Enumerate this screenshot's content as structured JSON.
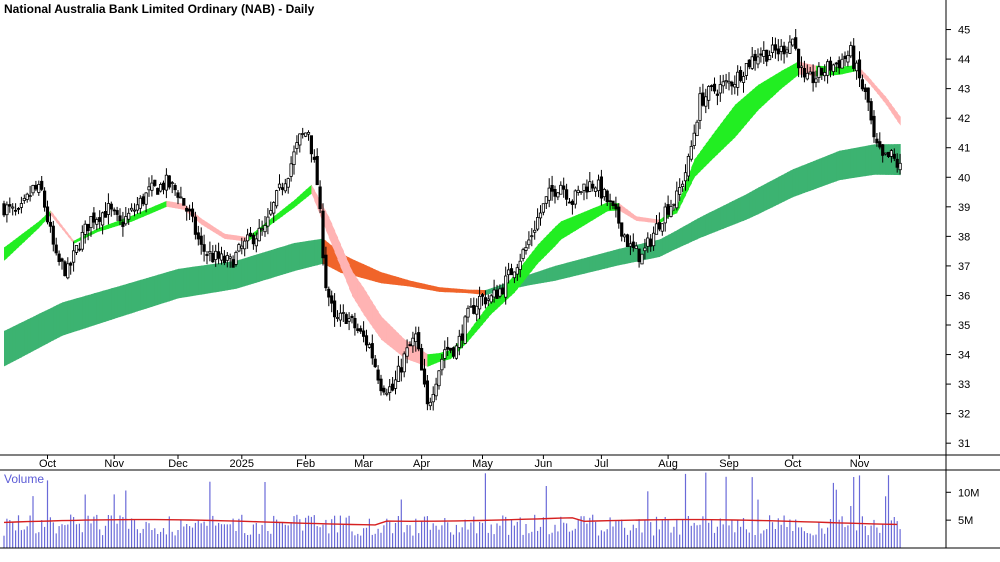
{
  "chart_data": {
    "type": "candlestick",
    "title": "National Australia Bank Limited Ordinary (NAB) - Daily",
    "price_axis": {
      "ylim": [
        30.6,
        46
      ],
      "ticks": [
        31,
        32,
        33,
        34,
        35,
        36,
        37,
        38,
        39,
        40,
        41,
        42,
        43,
        44,
        45
      ]
    },
    "months": [
      {
        "label": "Oct",
        "index": 15
      },
      {
        "label": "Nov",
        "index": 38
      },
      {
        "label": "Dec",
        "index": 60
      },
      {
        "label": "2025",
        "index": 82
      },
      {
        "label": "Feb",
        "index": 104
      },
      {
        "label": "Mar",
        "index": 124
      },
      {
        "label": "Apr",
        "index": 144
      },
      {
        "label": "May",
        "index": 165
      },
      {
        "label": "Jun",
        "index": 186
      },
      {
        "label": "Jul",
        "index": 206
      },
      {
        "label": "Aug",
        "index": 229
      },
      {
        "label": "Sep",
        "index": 250
      },
      {
        "label": "Oct",
        "index": 272
      },
      {
        "label": "Nov",
        "index": 295
      }
    ],
    "close_keyframes": [
      [
        0,
        39.0
      ],
      [
        5,
        38.7
      ],
      [
        10,
        39.6
      ],
      [
        13,
        39.5
      ],
      [
        18,
        37.2
      ],
      [
        22,
        36.8
      ],
      [
        26,
        37.8
      ],
      [
        30,
        38.6
      ],
      [
        36,
        38.9
      ],
      [
        40,
        38.4
      ],
      [
        44,
        38.8
      ],
      [
        50,
        39.5
      ],
      [
        56,
        39.8
      ],
      [
        60,
        39.5
      ],
      [
        64,
        38.7
      ],
      [
        68,
        37.6
      ],
      [
        72,
        37.3
      ],
      [
        78,
        37.1
      ],
      [
        82,
        37.6
      ],
      [
        86,
        38.0
      ],
      [
        90,
        38.2
      ],
      [
        94,
        39.3
      ],
      [
        98,
        40.2
      ],
      [
        102,
        41.3
      ],
      [
        105,
        41.6
      ],
      [
        108,
        39.8
      ],
      [
        111,
        36.4
      ],
      [
        114,
        35.1
      ],
      [
        118,
        35.3
      ],
      [
        122,
        34.8
      ],
      [
        126,
        34.3
      ],
      [
        130,
        33.0
      ],
      [
        134,
        32.8
      ],
      [
        138,
        33.9
      ],
      [
        142,
        34.6
      ],
      [
        146,
        32.2
      ],
      [
        148,
        32.9
      ],
      [
        152,
        34.2
      ],
      [
        156,
        34.2
      ],
      [
        160,
        35.3
      ],
      [
        164,
        35.9
      ],
      [
        168,
        35.9
      ],
      [
        172,
        36.3
      ],
      [
        176,
        37.0
      ],
      [
        180,
        37.6
      ],
      [
        184,
        38.6
      ],
      [
        188,
        39.4
      ],
      [
        192,
        39.8
      ],
      [
        196,
        39.2
      ],
      [
        200,
        39.7
      ],
      [
        204,
        39.8
      ],
      [
        208,
        39.2
      ],
      [
        212,
        38.5
      ],
      [
        216,
        37.6
      ],
      [
        220,
        37.3
      ],
      [
        224,
        38.1
      ],
      [
        228,
        38.9
      ],
      [
        232,
        39.3
      ],
      [
        236,
        40.5
      ],
      [
        240,
        42.6
      ],
      [
        244,
        42.9
      ],
      [
        248,
        43.1
      ],
      [
        252,
        43.3
      ],
      [
        256,
        43.8
      ],
      [
        260,
        44.2
      ],
      [
        264,
        44.2
      ],
      [
        268,
        44.3
      ],
      [
        272,
        44.7
      ],
      [
        276,
        43.2
      ],
      [
        280,
        43.4
      ],
      [
        284,
        43.7
      ],
      [
        288,
        43.9
      ],
      [
        292,
        44.2
      ],
      [
        295,
        43.3
      ],
      [
        298,
        42.5
      ],
      [
        300,
        41.2
      ],
      [
        303,
        40.6
      ],
      [
        306,
        40.7
      ],
      [
        309,
        40.3
      ],
      [
        310,
        40.2
      ]
    ],
    "ema_fast_keyframes": [
      [
        0,
        37.4
      ],
      [
        12,
        38.4
      ],
      [
        16,
        38.8
      ],
      [
        24,
        37.8
      ],
      [
        32,
        38.2
      ],
      [
        44,
        38.6
      ],
      [
        56,
        39.1
      ],
      [
        62,
        39.0
      ],
      [
        68,
        38.5
      ],
      [
        76,
        38.0
      ],
      [
        84,
        37.9
      ],
      [
        92,
        38.5
      ],
      [
        100,
        39.1
      ],
      [
        106,
        39.6
      ],
      [
        112,
        38.3
      ],
      [
        120,
        36.4
      ],
      [
        130,
        34.9
      ],
      [
        138,
        34.2
      ],
      [
        146,
        33.8
      ],
      [
        154,
        34.0
      ],
      [
        160,
        34.6
      ],
      [
        168,
        35.6
      ],
      [
        176,
        36.4
      ],
      [
        184,
        37.4
      ],
      [
        192,
        38.2
      ],
      [
        200,
        38.6
      ],
      [
        208,
        39.0
      ],
      [
        212,
        39.0
      ],
      [
        218,
        38.6
      ],
      [
        226,
        38.5
      ],
      [
        232,
        38.9
      ],
      [
        238,
        40.3
      ],
      [
        244,
        41.0
      ],
      [
        252,
        41.9
      ],
      [
        260,
        42.7
      ],
      [
        268,
        43.3
      ],
      [
        274,
        43.7
      ],
      [
        280,
        43.6
      ],
      [
        288,
        43.6
      ],
      [
        294,
        43.7
      ],
      [
        298,
        43.3
      ],
      [
        304,
        42.6
      ],
      [
        309,
        41.9
      ]
    ],
    "ema_fast_width": [
      [
        0,
        0.45
      ],
      [
        16,
        0.15
      ],
      [
        24,
        0.1
      ],
      [
        32,
        0.12
      ],
      [
        44,
        0.2
      ],
      [
        56,
        0.2
      ],
      [
        68,
        0.2
      ],
      [
        84,
        0.15
      ],
      [
        100,
        0.25
      ],
      [
        106,
        0.3
      ],
      [
        112,
        0.7
      ],
      [
        124,
        0.9
      ],
      [
        140,
        0.6
      ],
      [
        150,
        0.3
      ],
      [
        160,
        0.3
      ],
      [
        176,
        0.6
      ],
      [
        190,
        0.65
      ],
      [
        208,
        0.3
      ],
      [
        218,
        0.15
      ],
      [
        230,
        0.12
      ],
      [
        238,
        0.6
      ],
      [
        252,
        1.1
      ],
      [
        268,
        0.6
      ],
      [
        276,
        0.4
      ],
      [
        294,
        0.2
      ],
      [
        300,
        0.2
      ],
      [
        309,
        0.3
      ]
    ],
    "ema_slow_keyframes": [
      [
        0,
        34.2
      ],
      [
        20,
        35.2
      ],
      [
        40,
        35.8
      ],
      [
        60,
        36.4
      ],
      [
        80,
        36.7
      ],
      [
        100,
        37.3
      ],
      [
        110,
        37.5
      ],
      [
        116,
        37.1
      ],
      [
        130,
        36.6
      ],
      [
        150,
        36.2
      ],
      [
        166,
        36.1
      ],
      [
        180,
        36.5
      ],
      [
        196,
        36.9
      ],
      [
        212,
        37.3
      ],
      [
        226,
        37.6
      ],
      [
        240,
        38.3
      ],
      [
        256,
        39.0
      ],
      [
        272,
        39.8
      ],
      [
        288,
        40.4
      ],
      [
        300,
        40.6
      ],
      [
        309,
        40.6
      ]
    ],
    "ema_slow_width": [
      [
        0,
        1.2
      ],
      [
        40,
        1.05
      ],
      [
        80,
        0.95
      ],
      [
        100,
        0.95
      ],
      [
        110,
        0.85
      ],
      [
        120,
        0.55
      ],
      [
        140,
        0.2
      ],
      [
        160,
        0.12
      ],
      [
        170,
        0.2
      ],
      [
        190,
        0.5
      ],
      [
        210,
        0.55
      ],
      [
        230,
        0.6
      ],
      [
        260,
        0.9
      ],
      [
        290,
        1.0
      ],
      [
        309,
        1.05
      ]
    ],
    "volume_axis": {
      "ymax": 14,
      "unit": "M",
      "ticks": [
        5,
        10
      ]
    },
    "volume_label": "Volume",
    "volume_avg": 4.6,
    "candle_count": 310
  },
  "colors": {
    "up_fast": "#22ee22",
    "down_fast": "#ffb3b3",
    "up_slow": "#3cb371",
    "down_slow": "#f0642a",
    "candle": "#000000",
    "volume_bar": "#6a6ad8",
    "volume_avg": "#d62020",
    "vol_label": "#5b5bd6"
  }
}
